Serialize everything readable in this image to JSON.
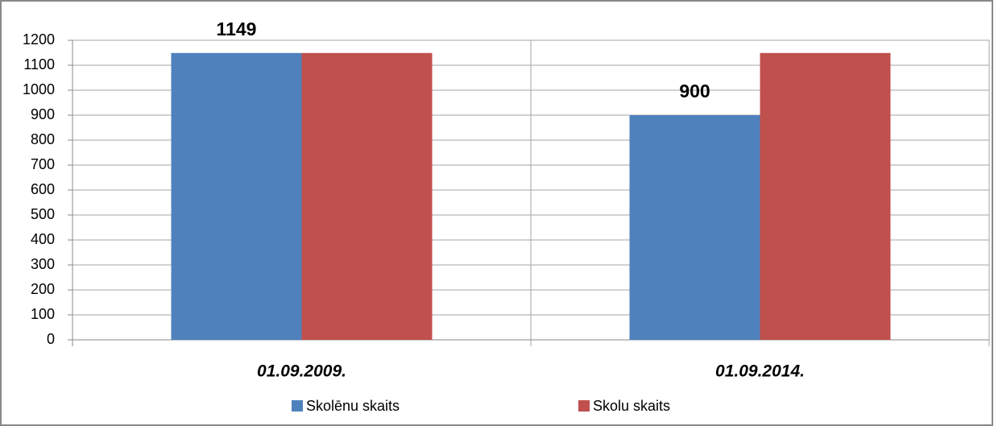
{
  "chart_data": {
    "type": "bar",
    "categories": [
      "01.09.2009.",
      "01.09.2014."
    ],
    "series": [
      {
        "name": "Skolēnu skaits",
        "color": "#4f81bd",
        "values": [
          1149,
          900
        ],
        "data_labels": true
      },
      {
        "name": "Skolu skaits",
        "color": "#c0504d",
        "values": [
          1149,
          1149
        ],
        "data_labels": false
      }
    ],
    "ylim": [
      0,
      1200
    ],
    "yticks": [
      0,
      100,
      200,
      300,
      400,
      500,
      600,
      700,
      800,
      900,
      1000,
      1100,
      1200
    ],
    "grid": true,
    "legend": "bottom"
  }
}
